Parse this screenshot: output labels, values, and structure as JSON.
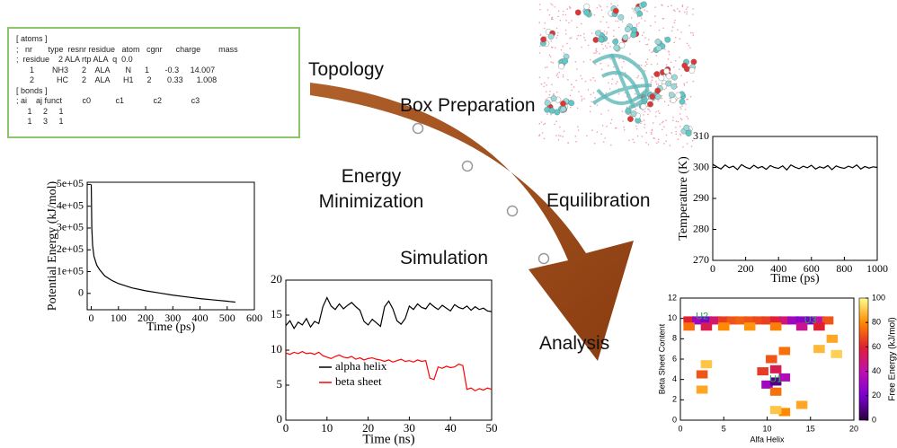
{
  "topology": {
    "lines": [
      "[ atoms ]",
      ";   nr       type  resnr residue   atom   cgnr      charge        mass",
      ";  residue    2 ALA rtp ALA  q  0.0",
      "      1        NH3      2    ALA       N      1       -0.3     14.007",
      "      2          HC      2    ALA      H1      2       0.33      1.008",
      "[ bonds ]",
      "; ai    aj funct         c0           c1             c2             c3",
      "     1     2     1",
      "     1     3     1"
    ]
  },
  "steps": [
    {
      "label": "Topology"
    },
    {
      "label": "Box Preparation"
    },
    {
      "label": "Energy Minimization"
    },
    {
      "label": "Equilibration"
    },
    {
      "label": "Simulation"
    },
    {
      "label": "Analysis"
    }
  ],
  "charts": {
    "energy": {
      "type": "line",
      "xlabel": "Time (ps)",
      "ylabel": "Potential Energy (kJ/mol)",
      "xlim": [
        -15,
        600
      ],
      "ylim": [
        -75000,
        510000
      ],
      "xticks": [
        0,
        100,
        200,
        300,
        400,
        500,
        600
      ],
      "yticks": [
        0,
        {
          "value": 100000,
          "label": "1e+05"
        },
        {
          "value": 200000,
          "label": "2e+05"
        },
        {
          "value": 300000,
          "label": "3e+05"
        },
        {
          "value": 400000,
          "label": "4e+05"
        },
        {
          "value": 500000,
          "label": "5e+05"
        }
      ],
      "x": [
        0,
        2,
        5,
        10,
        20,
        30,
        50,
        75,
        100,
        150,
        200,
        250,
        300,
        350,
        400,
        450,
        500,
        530
      ],
      "series": [
        {
          "color": "#000000",
          "values": [
            500000,
            300000,
            220000,
            170000,
            130000,
            110000,
            80000,
            60000,
            45000,
            25000,
            12000,
            2000,
            -8000,
            -16000,
            -24000,
            -30000,
            -36000,
            -40000
          ]
        }
      ]
    },
    "temperature": {
      "type": "line",
      "xlabel": "Time (ps)",
      "ylabel": "Temperature (K)",
      "xlim": [
        0,
        1000
      ],
      "ylim": [
        270,
        310
      ],
      "xticks": [
        0,
        200,
        400,
        600,
        800,
        1000
      ],
      "yticks": [
        270,
        280,
        290,
        300,
        310
      ],
      "x": [
        0,
        25,
        50,
        75,
        100,
        125,
        150,
        175,
        200,
        225,
        250,
        275,
        300,
        325,
        350,
        375,
        400,
        425,
        450,
        475,
        500,
        525,
        550,
        575,
        600,
        625,
        650,
        675,
        700,
        725,
        750,
        775,
        800,
        825,
        850,
        875,
        900,
        925,
        950,
        975,
        1000
      ],
      "series": [
        {
          "color": "#000000",
          "values": [
            301,
            300.2,
            299.5,
            300.8,
            299.9,
            300.4,
            299.3,
            300.9,
            300.1,
            299.6,
            300.7,
            299.8,
            300.3,
            299.4,
            300.6,
            300,
            299.7,
            300.5,
            299.2,
            300.8,
            300.1,
            299.6,
            300.4,
            299.9,
            300.7,
            299.5,
            300.2,
            299.8,
            300.6,
            299.3,
            300.5,
            300,
            299.7,
            300.4,
            299.9,
            300.8,
            299.5,
            300.3,
            299.8,
            300.2,
            300
          ]
        }
      ]
    },
    "simulation": {
      "type": "line",
      "xlabel": "Time (ns)",
      "xlim": [
        0,
        50
      ],
      "ylim": [
        0,
        20
      ],
      "xticks": [
        0,
        10,
        20,
        30,
        40,
        50
      ],
      "yticks": [
        0,
        5,
        10,
        15,
        20
      ],
      "x": [
        0,
        1,
        2,
        3,
        4,
        5,
        6,
        7,
        8,
        9,
        10,
        11,
        12,
        13,
        14,
        15,
        16,
        17,
        18,
        19,
        20,
        21,
        22,
        23,
        24,
        25,
        26,
        27,
        28,
        29,
        30,
        31,
        32,
        33,
        34,
        35,
        36,
        37,
        38,
        39,
        40,
        41,
        42,
        43,
        44,
        45,
        46,
        47,
        48,
        49,
        50
      ],
      "series": [
        {
          "name": "alpha helix",
          "color": "#000000",
          "values": [
            13.5,
            14.2,
            13.1,
            14,
            13.6,
            14.5,
            13.3,
            14.1,
            13.8,
            16.2,
            17.5,
            16.3,
            15.8,
            16.6,
            15.9,
            16.4,
            16.8,
            16.2,
            15.7,
            14.1,
            13.6,
            14.4,
            13.9,
            13.4,
            16.2,
            17,
            15.9,
            14.2,
            13.7,
            14.5,
            16.3,
            15.8,
            16.6,
            16.1,
            15.9,
            16.7,
            16.2,
            15.8,
            16.4,
            16,
            15.6,
            16.5,
            16.1,
            15.9,
            16.3,
            15.7,
            16.2,
            15.8,
            16,
            15.6,
            15.5
          ]
        },
        {
          "name": "beta sheet",
          "color": "#ff0000",
          "values": [
            9.6,
            9.4,
            9.7,
            9.5,
            9.8,
            9.5,
            9.6,
            9.4,
            9.7,
            9.2,
            9.0,
            8.8,
            9.1,
            9.3,
            9.0,
            8.9,
            9.1,
            8.7,
            8.9,
            8.6,
            8.8,
            8.9,
            8.7,
            8.6,
            8.4,
            8.6,
            8.3,
            8.5,
            8.7,
            8.4,
            8.5,
            8.3,
            8.6,
            8.4,
            8.5,
            6.0,
            5.8,
            7.6,
            7.4,
            7.7,
            7.5,
            7.6,
            8.0,
            7.8,
            4.4,
            4.6,
            4.2,
            4.5,
            4.3,
            4.6,
            4.4
          ]
        }
      ]
    },
    "free_energy": {
      "type": "heatmap",
      "xlabel": "Alfa Helix",
      "ylabel": "Beta Sheet Content",
      "colorbar_label": "Free Energy (kJ/mol)",
      "xlim": [
        0,
        20
      ],
      "ylim": [
        0,
        12
      ],
      "xticks": [
        0,
        5,
        10,
        15,
        20
      ],
      "yticks": [
        0,
        2,
        4,
        6,
        8,
        10,
        12
      ],
      "clim": [
        0,
        100
      ],
      "cticks": [
        0,
        20,
        40,
        60,
        80,
        100
      ],
      "colormap": [
        "#2a003f",
        "#7a00d0",
        "#c010b0",
        "#e02030",
        "#ff8a00",
        "#ffff90"
      ],
      "points": [
        {
          "x": 1,
          "y": 9.8,
          "value": 60
        },
        {
          "x": 2,
          "y": 9.8,
          "value": 30
        },
        {
          "x": 3,
          "y": 9.8,
          "value": 20
        },
        {
          "x": 4,
          "y": 9.8,
          "value": 50
        },
        {
          "x": 5,
          "y": 9.8,
          "value": 65
        },
        {
          "x": 6,
          "y": 9.8,
          "value": 70
        },
        {
          "x": 7,
          "y": 9.8,
          "value": 72
        },
        {
          "x": 8,
          "y": 9.8,
          "value": 70
        },
        {
          "x": 9,
          "y": 9.8,
          "value": 68
        },
        {
          "x": 10,
          "y": 9.8,
          "value": 66
        },
        {
          "x": 11,
          "y": 9.8,
          "value": 60
        },
        {
          "x": 12,
          "y": 9.8,
          "value": 50
        },
        {
          "x": 13,
          "y": 9.8,
          "value": 30
        },
        {
          "x": 14,
          "y": 9.8,
          "value": 25
        },
        {
          "x": 15,
          "y": 9.8,
          "value": 20
        },
        {
          "x": 16,
          "y": 9.8,
          "value": 40
        },
        {
          "x": 17,
          "y": 9.8,
          "value": 70
        },
        {
          "x": 1,
          "y": 9.2,
          "value": 75
        },
        {
          "x": 3,
          "y": 9.2,
          "value": 55
        },
        {
          "x": 5,
          "y": 9.2,
          "value": 80
        },
        {
          "x": 8,
          "y": 9.2,
          "value": 82
        },
        {
          "x": 11,
          "y": 9.2,
          "value": 78
        },
        {
          "x": 14,
          "y": 9.2,
          "value": 45
        },
        {
          "x": 16,
          "y": 9.2,
          "value": 60
        },
        {
          "x": 10,
          "y": 3.5,
          "value": 30
        },
        {
          "x": 11,
          "y": 3.8,
          "value": 10
        },
        {
          "x": 12,
          "y": 4.2,
          "value": 35
        },
        {
          "x": 11,
          "y": 5,
          "value": 55
        },
        {
          "x": 10.5,
          "y": 6,
          "value": 70
        },
        {
          "x": 12,
          "y": 6.8,
          "value": 75
        },
        {
          "x": 9.5,
          "y": 4.8,
          "value": 65
        },
        {
          "x": 11,
          "y": 2.8,
          "value": 75
        },
        {
          "x": 2.5,
          "y": 4.5,
          "value": 70
        },
        {
          "x": 2.5,
          "y": 3,
          "value": 85
        },
        {
          "x": 3,
          "y": 5.5,
          "value": 90
        },
        {
          "x": 12,
          "y": 0.8,
          "value": 80
        },
        {
          "x": 14,
          "y": 1.5,
          "value": 85
        },
        {
          "x": 11,
          "y": 1,
          "value": 90
        },
        {
          "x": 17.5,
          "y": 8,
          "value": 85
        },
        {
          "x": 18,
          "y": 6.5,
          "value": 92
        },
        {
          "x": 16,
          "y": 7,
          "value": 88
        }
      ],
      "annotations": [
        {
          "text": "U2",
          "x": 2.5,
          "y": 10.2
        },
        {
          "text": "U3",
          "x": 15,
          "y": 9.8
        },
        {
          "text": "U1",
          "x": 11,
          "y": 4
        }
      ]
    }
  }
}
